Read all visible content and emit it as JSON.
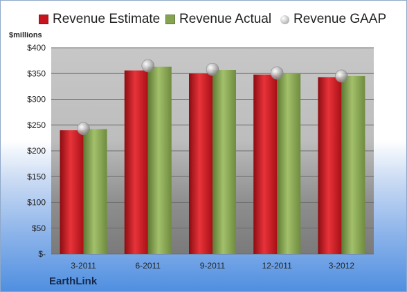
{
  "legend": {
    "estimate": "Revenue Estimate",
    "actual": "Revenue Actual",
    "gaap": "Revenue GAAP"
  },
  "unit_label": "$millions",
  "company": "EarthLink",
  "colors": {
    "estimate": "#c8141c",
    "actual": "#86a352",
    "gaap": "#b8b8b8"
  },
  "chart_data": {
    "type": "bar",
    "categories": [
      "3-2011",
      "6-2011",
      "9-2011",
      "12-2011",
      "3-2012"
    ],
    "series": [
      {
        "name": "Revenue Estimate",
        "values": [
          240,
          356,
          350,
          348,
          343
        ]
      },
      {
        "name": "Revenue Actual",
        "values": [
          242,
          363,
          357,
          350,
          345
        ]
      },
      {
        "name": "Revenue GAAP",
        "values": [
          243,
          365,
          358,
          351,
          345
        ]
      }
    ],
    "ylabel": "$millions",
    "ylim": [
      0,
      400
    ],
    "yticks": [
      0,
      50,
      100,
      150,
      200,
      250,
      300,
      350,
      400
    ],
    "ytick_labels": [
      "$-",
      "$50",
      "$100",
      "$150",
      "$200",
      "$250",
      "$300",
      "$350",
      "$400"
    ],
    "grid": true,
    "legend_position": "top"
  }
}
